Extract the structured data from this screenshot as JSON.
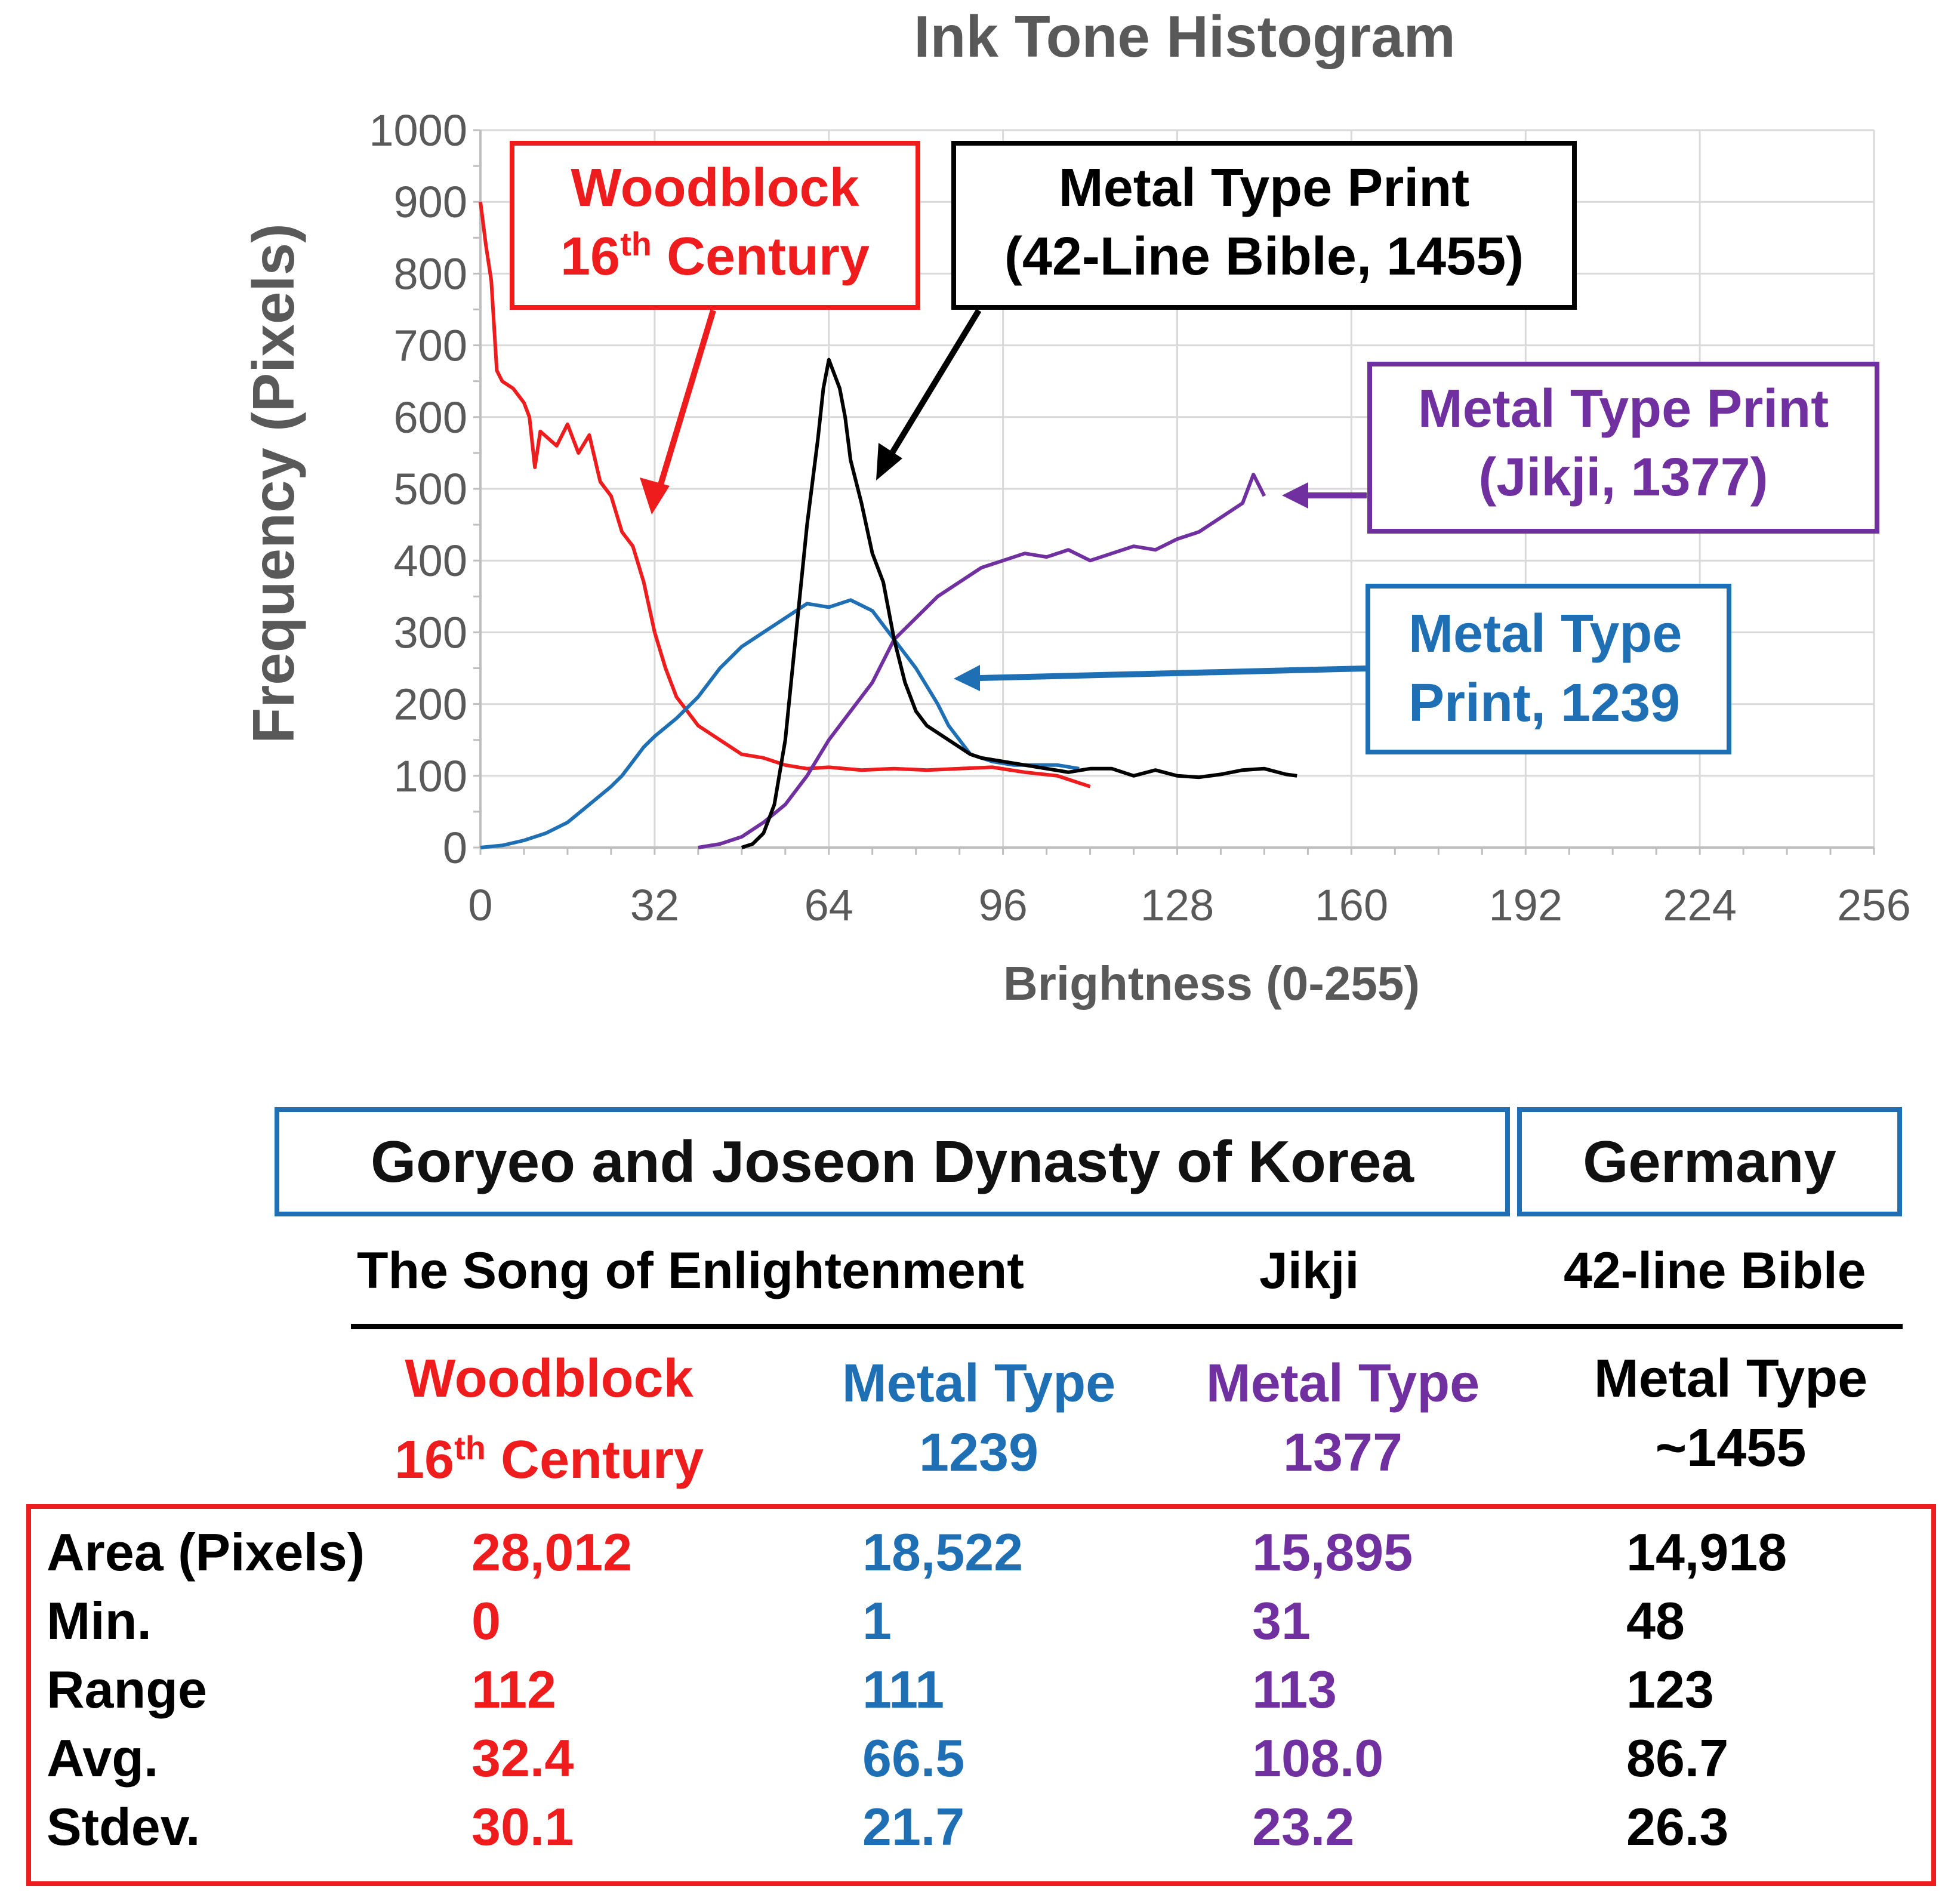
{
  "chart_data": {
    "type": "line",
    "title": "Ink Tone Histogram",
    "xlabel": "Brightness (0-255)",
    "ylabel": "Frequency (Pixels)",
    "xlim": [
      0,
      256
    ],
    "ylim": [
      0,
      1000
    ],
    "x_ticks": [
      0,
      32,
      64,
      96,
      128,
      160,
      192,
      224,
      256
    ],
    "y_ticks": [
      0,
      100,
      200,
      300,
      400,
      500,
      600,
      700,
      800,
      900,
      1000
    ],
    "grid": true,
    "series": [
      {
        "color": "#ee1c1c",
        "points": [
          [
            0,
            900
          ],
          [
            1,
            840
          ],
          [
            2,
            790
          ],
          [
            3,
            665
          ],
          [
            4,
            650
          ],
          [
            6,
            640
          ],
          [
            8,
            620
          ],
          [
            9,
            600
          ],
          [
            10,
            530
          ],
          [
            11,
            580
          ],
          [
            14,
            560
          ],
          [
            16,
            590
          ],
          [
            18,
            550
          ],
          [
            20,
            575
          ],
          [
            22,
            510
          ],
          [
            24,
            490
          ],
          [
            26,
            440
          ],
          [
            28,
            420
          ],
          [
            30,
            370
          ],
          [
            32,
            300
          ],
          [
            34,
            250
          ],
          [
            36,
            210
          ],
          [
            38,
            190
          ],
          [
            40,
            170
          ],
          [
            42,
            160
          ],
          [
            44,
            150
          ],
          [
            48,
            130
          ],
          [
            52,
            125
          ],
          [
            56,
            115
          ],
          [
            60,
            110
          ],
          [
            64,
            112
          ],
          [
            70,
            108
          ],
          [
            76,
            110
          ],
          [
            82,
            108
          ],
          [
            88,
            110
          ],
          [
            94,
            112
          ],
          [
            100,
            105
          ],
          [
            106,
            100
          ],
          [
            110,
            90
          ],
          [
            112,
            85
          ]
        ]
      },
      {
        "color": "#1f6fb5",
        "points": [
          [
            0,
            0
          ],
          [
            4,
            3
          ],
          [
            8,
            10
          ],
          [
            12,
            20
          ],
          [
            16,
            35
          ],
          [
            20,
            60
          ],
          [
            24,
            85
          ],
          [
            26,
            100
          ],
          [
            28,
            120
          ],
          [
            30,
            140
          ],
          [
            32,
            155
          ],
          [
            36,
            180
          ],
          [
            40,
            210
          ],
          [
            44,
            250
          ],
          [
            48,
            280
          ],
          [
            52,
            300
          ],
          [
            56,
            320
          ],
          [
            60,
            340
          ],
          [
            64,
            335
          ],
          [
            68,
            345
          ],
          [
            72,
            330
          ],
          [
            74,
            310
          ],
          [
            76,
            290
          ],
          [
            80,
            250
          ],
          [
            84,
            200
          ],
          [
            86,
            170
          ],
          [
            88,
            150
          ],
          [
            90,
            130
          ],
          [
            94,
            120
          ],
          [
            98,
            115
          ],
          [
            102,
            115
          ],
          [
            106,
            115
          ],
          [
            110,
            110
          ]
        ]
      },
      {
        "color": "#7030a0",
        "points": [
          [
            40,
            0
          ],
          [
            44,
            5
          ],
          [
            48,
            15
          ],
          [
            52,
            35
          ],
          [
            56,
            60
          ],
          [
            60,
            100
          ],
          [
            64,
            150
          ],
          [
            68,
            190
          ],
          [
            72,
            230
          ],
          [
            76,
            290
          ],
          [
            80,
            320
          ],
          [
            84,
            350
          ],
          [
            88,
            370
          ],
          [
            92,
            390
          ],
          [
            96,
            400
          ],
          [
            100,
            410
          ],
          [
            104,
            405
          ],
          [
            108,
            415
          ],
          [
            112,
            400
          ],
          [
            116,
            410
          ],
          [
            120,
            420
          ],
          [
            124,
            415
          ],
          [
            128,
            430
          ],
          [
            132,
            440
          ],
          [
            136,
            460
          ],
          [
            140,
            480
          ],
          [
            142,
            520
          ],
          [
            144,
            490
          ]
        ]
      },
      {
        "color": "#000000",
        "points": [
          [
            48,
            0
          ],
          [
            50,
            5
          ],
          [
            52,
            20
          ],
          [
            54,
            60
          ],
          [
            56,
            150
          ],
          [
            58,
            300
          ],
          [
            60,
            450
          ],
          [
            62,
            570
          ],
          [
            63,
            640
          ],
          [
            64,
            680
          ],
          [
            65,
            660
          ],
          [
            66,
            640
          ],
          [
            67,
            600
          ],
          [
            68,
            540
          ],
          [
            70,
            480
          ],
          [
            72,
            410
          ],
          [
            74,
            370
          ],
          [
            76,
            290
          ],
          [
            78,
            230
          ],
          [
            80,
            190
          ],
          [
            82,
            170
          ],
          [
            84,
            160
          ],
          [
            86,
            150
          ],
          [
            88,
            140
          ],
          [
            90,
            130
          ],
          [
            92,
            125
          ],
          [
            96,
            120
          ],
          [
            100,
            115
          ],
          [
            104,
            110
          ],
          [
            108,
            105
          ],
          [
            112,
            110
          ],
          [
            116,
            110
          ],
          [
            120,
            100
          ],
          [
            124,
            108
          ],
          [
            128,
            100
          ],
          [
            132,
            98
          ],
          [
            136,
            102
          ],
          [
            140,
            108
          ],
          [
            144,
            110
          ],
          [
            148,
            102
          ],
          [
            150,
            100
          ]
        ]
      }
    ]
  },
  "callouts": {
    "woodblock": {
      "line1": "Woodblock",
      "line2_num": "16",
      "line2_sup": "th",
      "line2_rest": " Century",
      "color": "#ee1c1c"
    },
    "bible": {
      "line1": "Metal Type Print",
      "line2": "(42-Line Bible, 1455)",
      "color": "#000000"
    },
    "jikji": {
      "line1": "Metal Type Print",
      "line2": "(Jikji, 1377)",
      "color": "#7030a0"
    },
    "mt1239": {
      "line1": "Metal Type",
      "line2": "Print, 1239",
      "color": "#1f6fb5"
    }
  },
  "table": {
    "region_korea": "Goryeo and Joseon Dynasty of Korea",
    "region_germany": "Germany",
    "work_song": "The Song of Enlightenment",
    "work_jikji": "Jikji",
    "work_bible": "42-line Bible",
    "columns": [
      {
        "line1": "Woodblock",
        "line2_num": "16",
        "line2_sup": "th",
        "line2_rest": " Century",
        "color": "#ee1c1c"
      },
      {
        "line1": "Metal Type",
        "line2": "1239",
        "color": "#1f6fb5"
      },
      {
        "line1": "Metal Type",
        "line2": "1377",
        "color": "#7030a0"
      },
      {
        "line1": "Metal Type",
        "line2": "~1455",
        "color": "#000000"
      }
    ],
    "rows": [
      {
        "label": "Area (Pixels)",
        "values": [
          "28,012",
          "18,522",
          "15,895",
          "14,918"
        ]
      },
      {
        "label": "Min.",
        "values": [
          "0",
          "1",
          "31",
          "48"
        ]
      },
      {
        "label": "Range",
        "values": [
          "112",
          "111",
          "113",
          "123"
        ]
      },
      {
        "label": "Avg.",
        "values": [
          "32.4",
          "66.5",
          "108.0",
          "86.7"
        ]
      },
      {
        "label": "Stdev.",
        "values": [
          "30.1",
          "21.7",
          "23.2",
          "26.3"
        ]
      }
    ]
  }
}
